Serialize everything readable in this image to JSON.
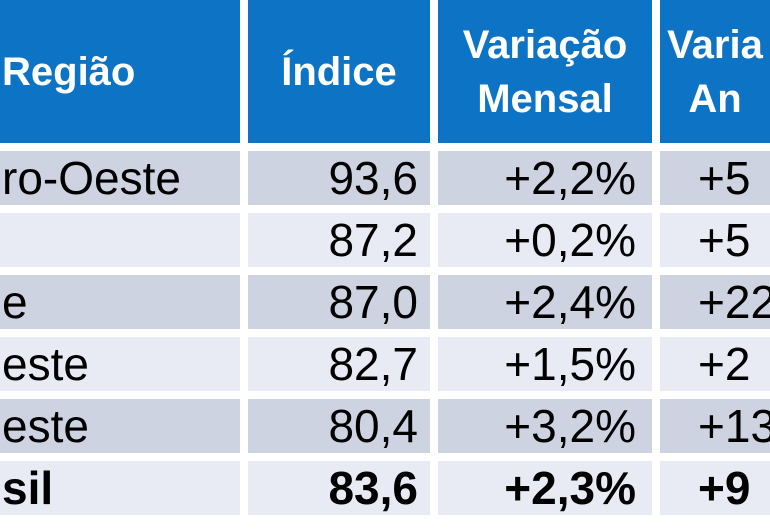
{
  "colors": {
    "header-bg": "#0d73c5",
    "header-text": "#ffffff",
    "row-dark": "#cdd3e0",
    "row-light": "#e9ebf4",
    "body-text": "#000000",
    "gap": "#ffffff"
  },
  "table": {
    "header": {
      "regiao": "Região",
      "indice": "Índice",
      "variacao_mensal_line1": "Variação",
      "variacao_mensal_line2": "Mensal",
      "variacao_anual_line1": "Varia",
      "variacao_anual_line2": "An"
    },
    "rows": [
      {
        "regiao": "ro-Oeste",
        "indice": "93,6",
        "mensal": "+2,2%",
        "anual": "+5"
      },
      {
        "regiao": "",
        "indice": "87,2",
        "mensal": "+0,2%",
        "anual": "+5"
      },
      {
        "regiao": "e",
        "indice": "87,0",
        "mensal": "+2,4%",
        "anual": "+22"
      },
      {
        "regiao": "este",
        "indice": "82,7",
        "mensal": "+1,5%",
        "anual": "+2"
      },
      {
        "regiao": "este",
        "indice": "80,4",
        "mensal": "+3,2%",
        "anual": "+13"
      },
      {
        "regiao": "sil",
        "indice": "83,6",
        "mensal": "+2,3%",
        "anual": "+9"
      }
    ]
  },
  "chart_data": {
    "type": "table",
    "title": "",
    "columns": [
      "Região",
      "Índice",
      "Variação Mensal",
      "Variação An (right-cropped)"
    ],
    "rows": [
      [
        "ro-Oeste (left-cropped)",
        "93,6",
        "+2,2%",
        "+5 (right-cropped)"
      ],
      [
        "(name fully cropped)",
        "87,2",
        "+0,2%",
        "+5 (right-cropped)"
      ],
      [
        "e (left-cropped)",
        "87,0",
        "+2,4%",
        "+22 (right-cropped)"
      ],
      [
        "este (left-cropped)",
        "82,7",
        "+1,5%",
        "+2 (right-cropped)"
      ],
      [
        "este (left-cropped)",
        "80,4",
        "+3,2%",
        "+13 (right-cropped)"
      ],
      [
        "sil (left-cropped, bold totals row)",
        "83,6",
        "+2,3%",
        "+9 (right-cropped)"
      ]
    ],
    "layout": {
      "header_style": "solid blue background, white bold text",
      "banding": [
        "dark",
        "light",
        "dark",
        "light",
        "dark",
        "light"
      ],
      "last_row_bold": true,
      "numeric_alignment": "right for Índice and Variação Mensal"
    }
  }
}
